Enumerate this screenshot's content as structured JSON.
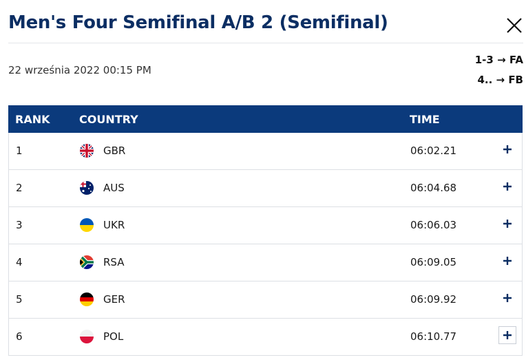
{
  "header": {
    "title": "Men's Four Semifinal A/B 2 (Semifinal)",
    "date": "22 września 2022 00:15 PM",
    "progression": [
      "1-3 → FA",
      "4.. → FB"
    ]
  },
  "table": {
    "columns": [
      "RANK",
      "COUNTRY",
      "TIME"
    ],
    "rows": [
      [
        1,
        "GBR",
        "06:02.21"
      ],
      [
        2,
        "AUS",
        "06:04.68"
      ],
      [
        3,
        "UKR",
        "06:06.03"
      ],
      [
        4,
        "RSA",
        "06:09.05"
      ],
      [
        5,
        "GER",
        "06:09.92"
      ],
      [
        6,
        "POL",
        "06:10.77"
      ]
    ]
  }
}
